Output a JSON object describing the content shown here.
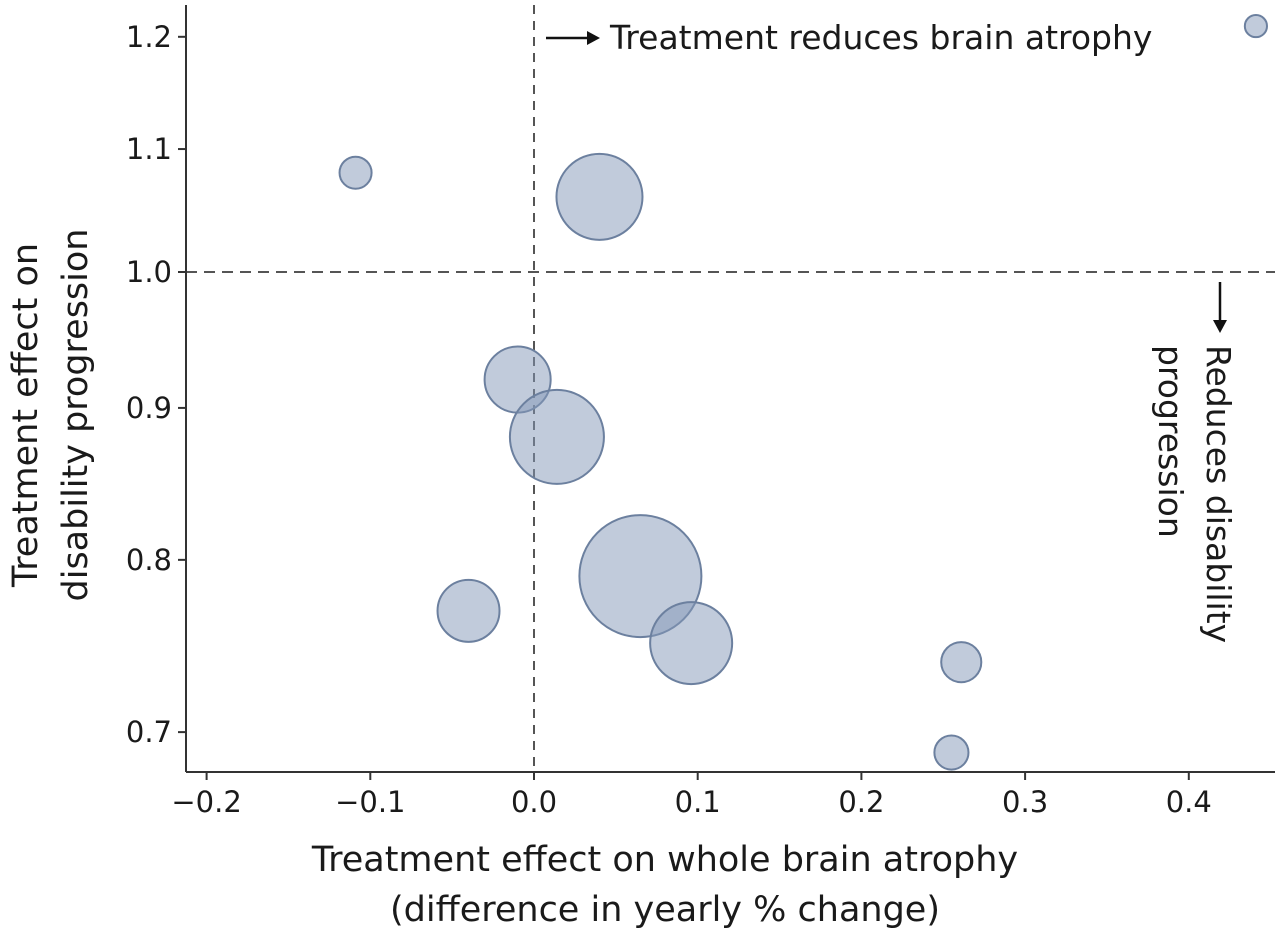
{
  "chart_data": {
    "type": "scatter",
    "subtype": "bubble",
    "xlabel": [
      "Treatment effect on whole brain atrophy",
      "(difference in yearly % change)"
    ],
    "ylabel": [
      "Treatment effect on",
      "disability progression"
    ],
    "xlim": [
      -0.22,
      0.445
    ],
    "ylim": [
      0.68,
      1.225
    ],
    "yscale": "log",
    "xticks": [
      -0.2,
      -0.1,
      0.0,
      0.1,
      0.2,
      0.3,
      0.4
    ],
    "xtick_labels": [
      "−0.2",
      "−0.1",
      "0.0",
      "0.1",
      "0.2",
      "0.3",
      "0.4"
    ],
    "yticks": [
      0.7,
      0.8,
      0.9,
      1.0,
      1.1,
      1.2
    ],
    "ytick_labels": [
      "0.7",
      "0.8",
      "0.9",
      "1.0",
      "1.1",
      "1.2"
    ],
    "reference_lines": {
      "x": 0.0,
      "y": 1.0
    },
    "annotations": {
      "x_direction": "Treatment reduces brain atrophy",
      "y_direction": [
        "Reduces disability",
        "progression"
      ]
    },
    "grid": false,
    "size_note": "relative bubble area, largest = 100",
    "points": [
      {
        "x": 0.441,
        "y": 1.21,
        "size": 3.3
      },
      {
        "x": -0.109,
        "y": 1.08,
        "size": 6.9
      },
      {
        "x": 0.04,
        "y": 1.06,
        "size": 49.7
      },
      {
        "x": -0.01,
        "y": 0.92,
        "size": 29.3
      },
      {
        "x": 0.014,
        "y": 0.88,
        "size": 59.4
      },
      {
        "x": 0.065,
        "y": 0.79,
        "size": 100
      },
      {
        "x": -0.04,
        "y": 0.769,
        "size": 25.8
      },
      {
        "x": 0.096,
        "y": 0.75,
        "size": 45.2
      },
      {
        "x": 0.261,
        "y": 0.739,
        "size": 10.8
      },
      {
        "x": 0.255,
        "y": 0.689,
        "size": 7.8
      }
    ],
    "colors": {
      "fill": "#8497b7",
      "stroke": "#6c809f",
      "axis": "#333333",
      "refline": "#555555"
    }
  }
}
